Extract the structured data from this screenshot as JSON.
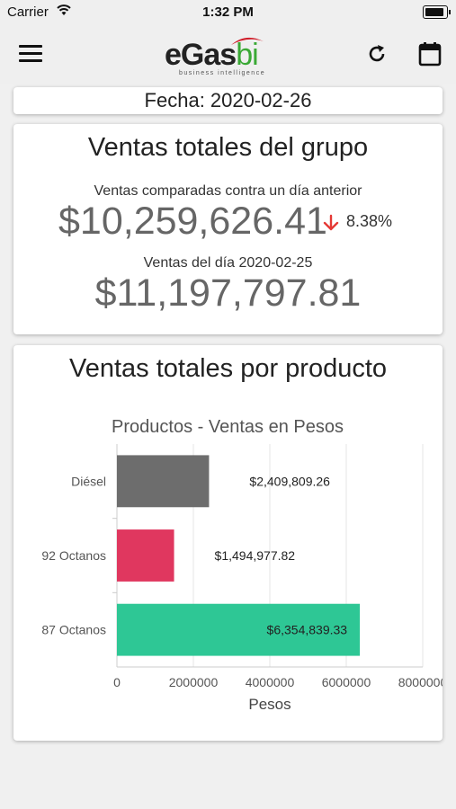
{
  "status_bar": {
    "carrier": "Carrier",
    "time": "1:32 PM"
  },
  "app_bar": {
    "menu_icon": "hamburger-menu-icon",
    "refresh_icon": "refresh-icon",
    "calendar_icon": "calendar-icon",
    "logo": {
      "main": "eGas",
      "accent": "bi",
      "subtitle": "business intelligence",
      "accent_color": "#3aa935",
      "swoosh_color": "#d01f2b"
    }
  },
  "date_card": {
    "label": "Fecha: 2020-02-26"
  },
  "summary": {
    "title": "Ventas totales del grupo",
    "compare_label": "Ventas comparadas contra un día anterior",
    "current_value": "$10,259,626.41",
    "change_direction": "down",
    "change_color": "#e53935",
    "change_pct": "8.38%",
    "previous_label": "Ventas del día 2020-02-25",
    "previous_value": "$11,197,797.81"
  },
  "products": {
    "title": "Ventas totales por producto"
  },
  "chart_data": {
    "type": "bar",
    "orientation": "horizontal",
    "title": "Productos - Ventas en Pesos",
    "xlabel": "Pesos",
    "ylabel": "",
    "categories": [
      "Diésel",
      "92 Octanos",
      "87 Octanos"
    ],
    "values": [
      2409809.26,
      1494977.82,
      6354839.33
    ],
    "value_labels": [
      "$2,409,809.26",
      "$1,494,977.82",
      "$6,354,839.33"
    ],
    "colors": [
      "#6d6d6d",
      "#e0375f",
      "#2ec795"
    ],
    "xlim": [
      0,
      8000000
    ],
    "xticks": [
      0,
      2000000,
      4000000,
      6000000,
      8000000
    ],
    "xtick_labels": [
      "0",
      "2000000",
      "4000000",
      "6000000",
      "8000000"
    ],
    "grid": "vertical"
  }
}
